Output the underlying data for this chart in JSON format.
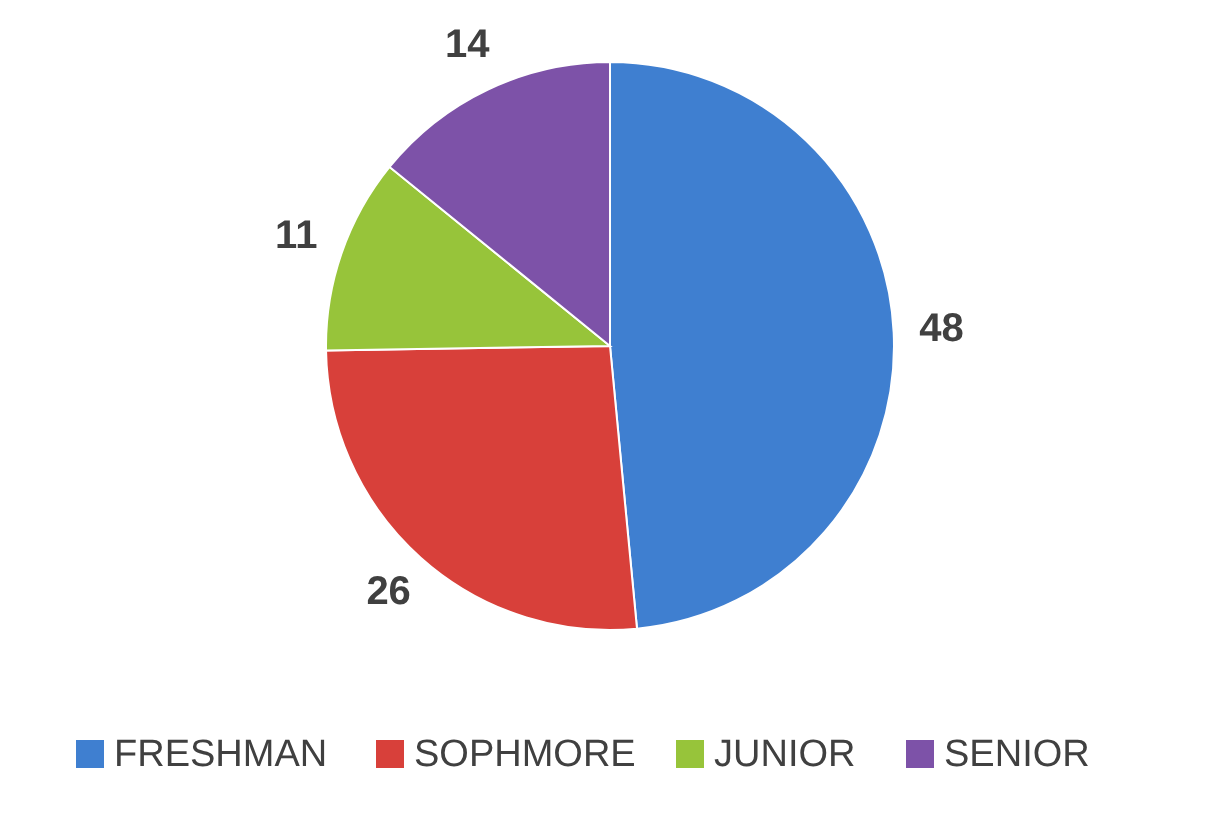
{
  "chart_data": {
    "type": "pie",
    "categories": [
      "FRESHMAN",
      "SOPHMORE",
      "JUNIOR",
      "SENIOR"
    ],
    "values": [
      48,
      26,
      11,
      14
    ],
    "colors": [
      "#3f7fd0",
      "#d8403a",
      "#97c43a",
      "#7d52a8"
    ],
    "data_labels": true,
    "legend": "bottom"
  }
}
